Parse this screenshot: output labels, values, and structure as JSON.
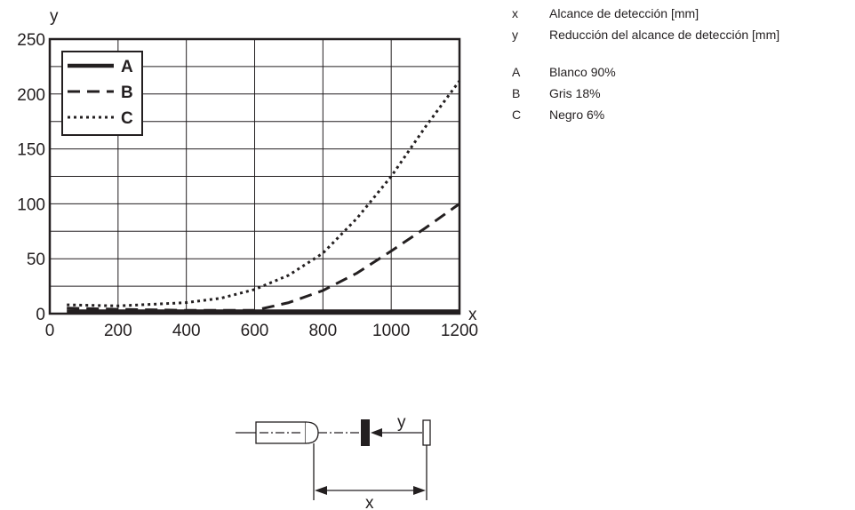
{
  "chart_data": {
    "type": "line",
    "x_axis_symbol": "x",
    "y_axis_symbol": "y",
    "xlim": [
      0,
      1200
    ],
    "ylim": [
      0,
      250
    ],
    "x_ticks": [
      0,
      200,
      400,
      600,
      800,
      1000,
      1200
    ],
    "y_ticks": [
      0,
      50,
      100,
      150,
      200,
      250
    ],
    "grid": true,
    "legend_position": "top-left",
    "series": [
      {
        "name": "A",
        "style": "solid",
        "color": "#231f20",
        "x": [
          50,
          200,
          400,
          600,
          800,
          1000,
          1200
        ],
        "y": [
          2,
          2,
          2,
          2,
          2,
          2,
          2
        ]
      },
      {
        "name": "B",
        "style": "dashed",
        "color": "#231f20",
        "x": [
          50,
          200,
          400,
          600,
          700,
          800,
          900,
          1000,
          1100,
          1200
        ],
        "y": [
          5,
          4,
          3,
          3,
          10,
          21,
          37,
          57,
          78,
          100
        ]
      },
      {
        "name": "C",
        "style": "dotted",
        "color": "#231f20",
        "x": [
          50,
          200,
          400,
          500,
          600,
          700,
          800,
          900,
          1000,
          1100,
          1200
        ],
        "y": [
          8,
          7,
          10,
          14,
          22,
          35,
          55,
          87,
          125,
          170,
          212
        ]
      }
    ]
  },
  "legend_definitions": {
    "axes": [
      {
        "key": "x",
        "label": "Alcance de detección [mm]"
      },
      {
        "key": "y",
        "label": "Reducción del alcance de detección [mm]"
      }
    ],
    "series": [
      {
        "key": "A",
        "label": "Blanco 90%"
      },
      {
        "key": "B",
        "label": "Gris 18%"
      },
      {
        "key": "C",
        "label": "Negro 6%"
      }
    ]
  },
  "diagram": {
    "y_label": "y",
    "x_label": "x"
  },
  "colors": {
    "ink": "#231f20",
    "background": "#ffffff"
  }
}
